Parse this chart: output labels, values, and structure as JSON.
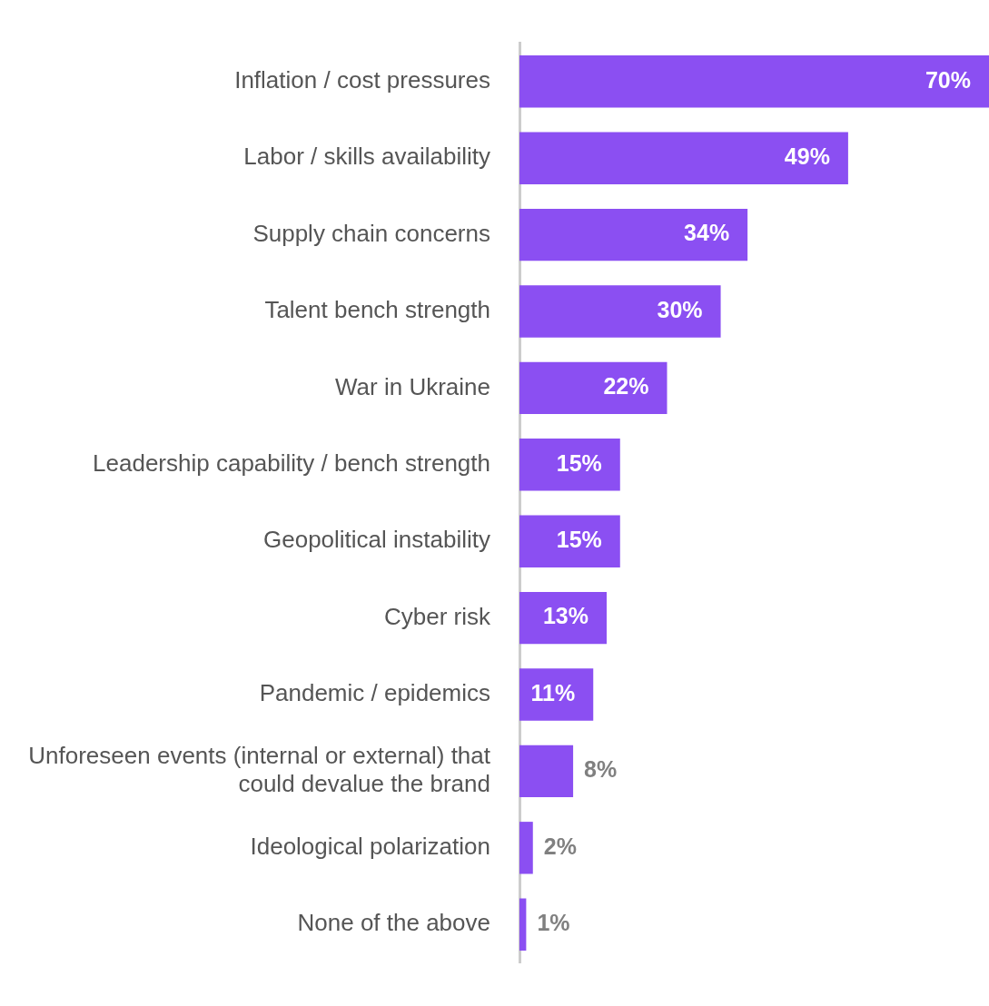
{
  "chart_data": {
    "type": "bar",
    "orientation": "horizontal",
    "categories": [
      "Inflation / cost pressures",
      "Labor / skills availability",
      "Supply chain concerns",
      "Talent bench strength",
      "War in Ukraine",
      "Leadership capability / bench strength",
      "Geopolitical instability",
      "Cyber risk",
      "Pandemic / epidemics",
      "Unforeseen events (internal or external) that could devalue the brand",
      "Ideological polarization",
      "None of the above"
    ],
    "values": [
      70,
      49,
      34,
      30,
      22,
      15,
      15,
      13,
      11,
      8,
      2,
      1
    ],
    "value_labels": [
      "70%",
      "49%",
      "34%",
      "30%",
      "22%",
      "15%",
      "15%",
      "13%",
      "11%",
      "8%",
      "2%",
      "1%"
    ],
    "color": "#8b4ff2",
    "xlim": [
      0,
      70
    ],
    "tick_labels": "y",
    "grid": false,
    "legend": false
  }
}
